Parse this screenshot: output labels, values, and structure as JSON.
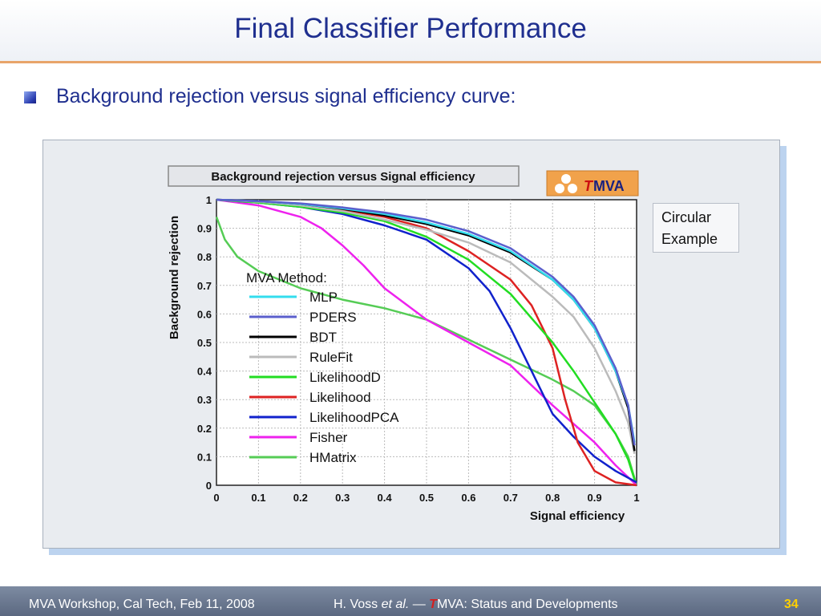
{
  "slide": {
    "title": "Final Classifier Performance",
    "bullet": "Background rejection versus signal efficiency curve:",
    "note": [
      "Circular",
      "Example"
    ]
  },
  "footer": {
    "left": "MVA Workshop, Cal Tech, Feb 11, 2008",
    "center_prefix": "H. Voss ",
    "center_italic": "et al.",
    "center_dash": " — ",
    "center_t": "T",
    "center_suffix": "MVA: Status and Developments",
    "page": "34"
  },
  "logo": {
    "t": "T",
    "rest": "MVA"
  },
  "colors": {
    "title": "#1f2f8f",
    "accent_line": "#e8a46a",
    "footer_page": "#ffd000"
  },
  "chart_data": {
    "type": "line",
    "title": "Background rejection versus Signal efficiency",
    "xlabel": "Signal efficiency",
    "ylabel": "Background rejection",
    "xlim": [
      0,
      1
    ],
    "ylim": [
      0,
      1
    ],
    "xticks": [
      "0",
      "0.1",
      "0.2",
      "0.3",
      "0.4",
      "0.5",
      "0.6",
      "0.7",
      "0.8",
      "0.9",
      "1"
    ],
    "yticks": [
      "0",
      "0.1",
      "0.2",
      "0.3",
      "0.4",
      "0.5",
      "0.6",
      "0.7",
      "0.8",
      "0.9",
      "1"
    ],
    "grid": true,
    "legend_title": "MVA Method:",
    "legend_position": "left",
    "series": [
      {
        "name": "MLP",
        "color": "#33ddee",
        "points": [
          [
            0,
            1
          ],
          [
            0.1,
            0.995
          ],
          [
            0.2,
            0.985
          ],
          [
            0.3,
            0.97
          ],
          [
            0.4,
            0.95
          ],
          [
            0.5,
            0.92
          ],
          [
            0.6,
            0.88
          ],
          [
            0.7,
            0.82
          ],
          [
            0.8,
            0.72
          ],
          [
            0.85,
            0.65
          ],
          [
            0.9,
            0.55
          ],
          [
            0.95,
            0.4
          ],
          [
            0.98,
            0.28
          ],
          [
            0.995,
            0.15
          ]
        ]
      },
      {
        "name": "PDERS",
        "color": "#5b5fcc",
        "points": [
          [
            0,
            1
          ],
          [
            0.1,
            0.995
          ],
          [
            0.2,
            0.987
          ],
          [
            0.3,
            0.973
          ],
          [
            0.4,
            0.955
          ],
          [
            0.5,
            0.93
          ],
          [
            0.6,
            0.89
          ],
          [
            0.7,
            0.83
          ],
          [
            0.8,
            0.73
          ],
          [
            0.85,
            0.66
          ],
          [
            0.9,
            0.56
          ],
          [
            0.95,
            0.41
          ],
          [
            0.98,
            0.28
          ],
          [
            0.995,
            0.14
          ]
        ]
      },
      {
        "name": "BDT",
        "color": "#000000",
        "points": [
          [
            0,
            1
          ],
          [
            0.1,
            0.995
          ],
          [
            0.2,
            0.985
          ],
          [
            0.3,
            0.968
          ],
          [
            0.4,
            0.945
          ],
          [
            0.5,
            0.915
          ],
          [
            0.6,
            0.875
          ],
          [
            0.7,
            0.815
          ],
          [
            0.8,
            0.72
          ],
          [
            0.85,
            0.65
          ],
          [
            0.9,
            0.55
          ],
          [
            0.95,
            0.4
          ],
          [
            0.98,
            0.27
          ],
          [
            0.995,
            0.12
          ]
        ]
      },
      {
        "name": "RuleFit",
        "color": "#bbbbbb",
        "points": [
          [
            0,
            1
          ],
          [
            0.1,
            0.993
          ],
          [
            0.2,
            0.98
          ],
          [
            0.3,
            0.96
          ],
          [
            0.4,
            0.93
          ],
          [
            0.5,
            0.895
          ],
          [
            0.6,
            0.85
          ],
          [
            0.7,
            0.78
          ],
          [
            0.8,
            0.66
          ],
          [
            0.85,
            0.59
          ],
          [
            0.9,
            0.48
          ],
          [
            0.95,
            0.33
          ],
          [
            0.98,
            0.22
          ],
          [
            0.995,
            0.11
          ]
        ]
      },
      {
        "name": "LikelihoodD",
        "color": "#22dd22",
        "points": [
          [
            0,
            1
          ],
          [
            0.1,
            0.99
          ],
          [
            0.2,
            0.975
          ],
          [
            0.3,
            0.955
          ],
          [
            0.4,
            0.925
          ],
          [
            0.5,
            0.87
          ],
          [
            0.6,
            0.79
          ],
          [
            0.7,
            0.67
          ],
          [
            0.8,
            0.5
          ],
          [
            0.85,
            0.4
          ],
          [
            0.9,
            0.29
          ],
          [
            0.95,
            0.18
          ],
          [
            0.98,
            0.09
          ],
          [
            0.995,
            0.02
          ]
        ]
      },
      {
        "name": "Likelihood",
        "color": "#dd2222",
        "points": [
          [
            0,
            1
          ],
          [
            0.1,
            0.993
          ],
          [
            0.2,
            0.983
          ],
          [
            0.3,
            0.965
          ],
          [
            0.4,
            0.94
          ],
          [
            0.5,
            0.9
          ],
          [
            0.6,
            0.82
          ],
          [
            0.7,
            0.72
          ],
          [
            0.75,
            0.63
          ],
          [
            0.8,
            0.48
          ],
          [
            0.83,
            0.3
          ],
          [
            0.86,
            0.15
          ],
          [
            0.9,
            0.05
          ],
          [
            0.95,
            0.01
          ],
          [
            1,
            0
          ]
        ]
      },
      {
        "name": "LikelihoodPCA",
        "color": "#1122cc",
        "points": [
          [
            0,
            1
          ],
          [
            0.1,
            0.99
          ],
          [
            0.2,
            0.975
          ],
          [
            0.3,
            0.95
          ],
          [
            0.4,
            0.91
          ],
          [
            0.5,
            0.86
          ],
          [
            0.6,
            0.76
          ],
          [
            0.65,
            0.68
          ],
          [
            0.7,
            0.55
          ],
          [
            0.75,
            0.4
          ],
          [
            0.8,
            0.25
          ],
          [
            0.85,
            0.17
          ],
          [
            0.9,
            0.1
          ],
          [
            0.95,
            0.05
          ],
          [
            1,
            0.01
          ]
        ]
      },
      {
        "name": "Fisher",
        "color": "#ee22ee",
        "points": [
          [
            0,
            1
          ],
          [
            0.1,
            0.98
          ],
          [
            0.2,
            0.94
          ],
          [
            0.25,
            0.9
          ],
          [
            0.3,
            0.84
          ],
          [
            0.35,
            0.77
          ],
          [
            0.4,
            0.69
          ],
          [
            0.5,
            0.58
          ],
          [
            0.6,
            0.5
          ],
          [
            0.7,
            0.42
          ],
          [
            0.8,
            0.28
          ],
          [
            0.9,
            0.15
          ],
          [
            0.95,
            0.07
          ],
          [
            1,
            0
          ]
        ]
      },
      {
        "name": "HMatrix",
        "color": "#55cc55",
        "points": [
          [
            0,
            0.94
          ],
          [
            0.02,
            0.86
          ],
          [
            0.05,
            0.8
          ],
          [
            0.1,
            0.75
          ],
          [
            0.2,
            0.69
          ],
          [
            0.3,
            0.65
          ],
          [
            0.4,
            0.62
          ],
          [
            0.5,
            0.58
          ],
          [
            0.6,
            0.51
          ],
          [
            0.7,
            0.44
          ],
          [
            0.8,
            0.37
          ],
          [
            0.85,
            0.33
          ],
          [
            0.9,
            0.28
          ],
          [
            0.95,
            0.18
          ],
          [
            0.98,
            0.1
          ],
          [
            1,
            0
          ]
        ]
      }
    ]
  }
}
